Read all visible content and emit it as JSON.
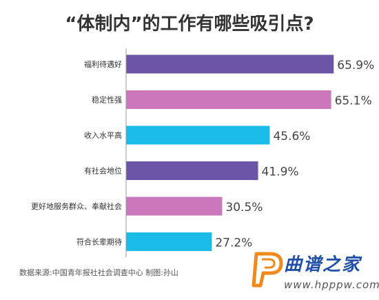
{
  "chart_data": {
    "type": "bar",
    "orientation": "horizontal",
    "title": "“体制内”的工作有哪些吸引点?",
    "categories": [
      "福利待遇好",
      "稳定性强",
      "收入水平高",
      "有社会地位",
      "更好地服务群众、奉献社会",
      "符合长辈期待"
    ],
    "values": [
      65.9,
      65.1,
      45.6,
      41.9,
      30.5,
      27.2
    ],
    "value_labels": [
      "65.9%",
      "65.1%",
      "45.6%",
      "41.9%",
      "30.5%",
      "27.2%"
    ],
    "colors": [
      "#6a55a8",
      "#cc77bb",
      "#1bbbe8",
      "#6a55a8",
      "#cc77bb",
      "#1bbbe8"
    ],
    "xlim": [
      0,
      70
    ],
    "grid": false,
    "legend": "none",
    "source": "数据来源:中国青年报社社会调查中心 制图:孙山"
  },
  "watermark": {
    "logo_text": "曲谱之家",
    "url": "www.hpppw.com",
    "colors": {
      "logo_orange": "#f08a1c",
      "logo_blue": "#1f4fa8",
      "url_gray": "#555555"
    }
  }
}
